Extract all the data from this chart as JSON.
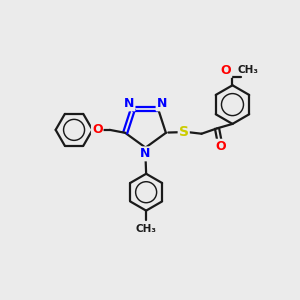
{
  "background_color": "#EBEBEB",
  "bond_color": "#1a1a1a",
  "N_color": "#0000FF",
  "O_color": "#FF0000",
  "S_color": "#CCCC00",
  "text_color": "#1a1a1a",
  "figsize": [
    3.0,
    3.0
  ],
  "dpi": 100,
  "xlim": [
    0,
    10
  ],
  "ylim": [
    0,
    10
  ]
}
